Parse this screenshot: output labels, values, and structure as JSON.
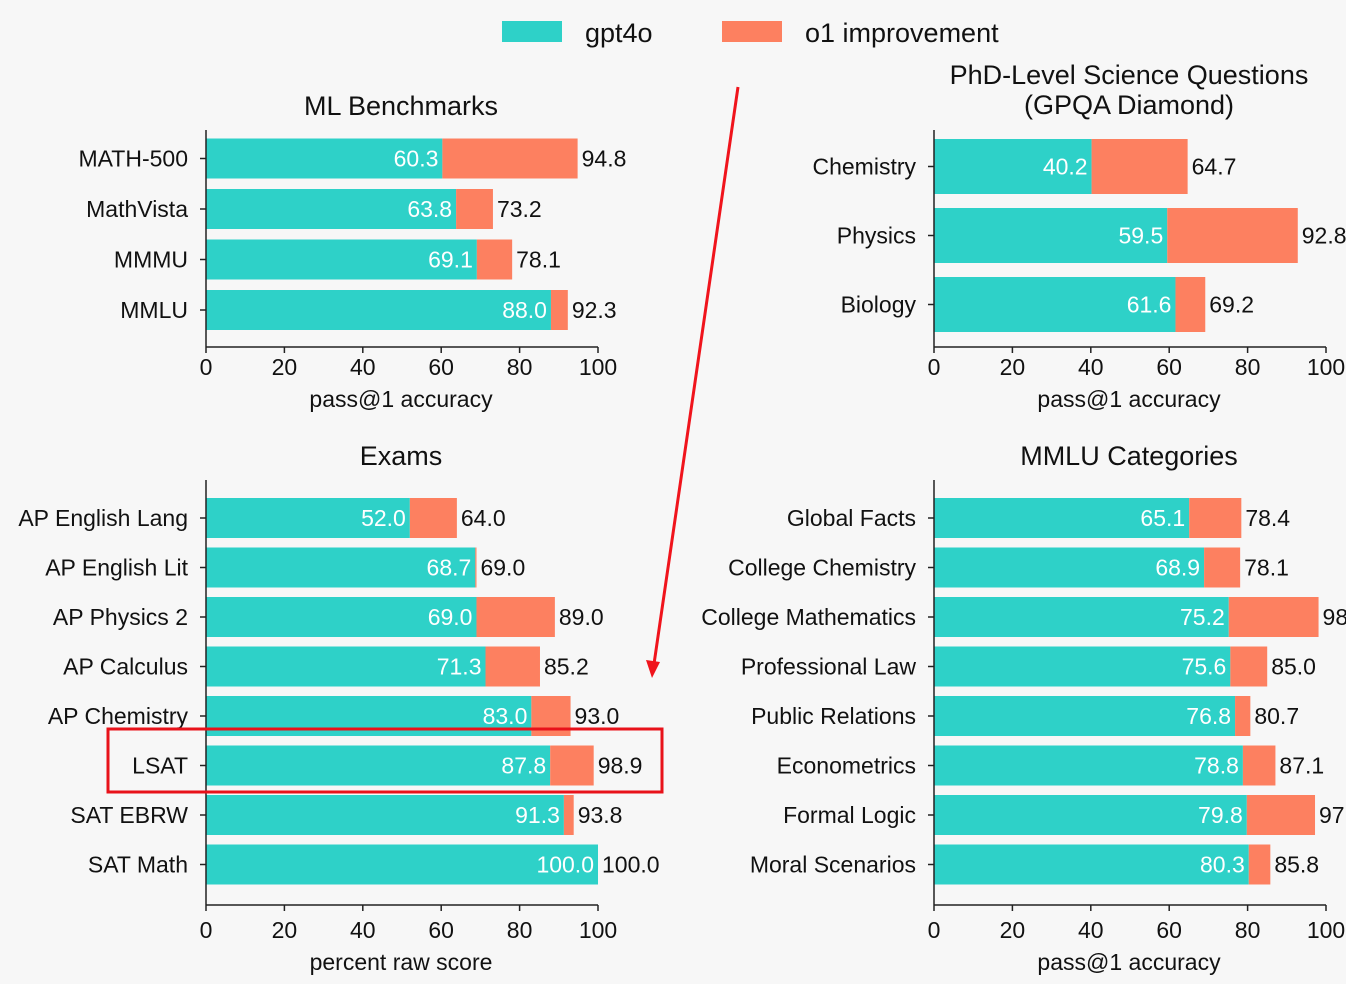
{
  "legend": {
    "items": [
      {
        "label": "gpt4o",
        "color": "#2ed1c8"
      },
      {
        "label": "o1 improvement",
        "color": "#fd8060"
      }
    ]
  },
  "chart_data": [
    {
      "id": "ml",
      "type": "bar",
      "orientation": "horizontal",
      "stacked": true,
      "title": [
        "ML Benchmarks"
      ],
      "xlabel": "pass@1 accuracy",
      "xlim": [
        0,
        100
      ],
      "xticks": [
        0,
        20,
        40,
        60,
        80,
        100
      ],
      "categories": [
        "MATH-500",
        "MathVista",
        "MMMU",
        "MMLU"
      ],
      "series": [
        {
          "name": "gpt4o",
          "values": [
            60.3,
            63.8,
            69.1,
            88.0
          ]
        },
        {
          "name": "o1 improvement",
          "totals": [
            94.8,
            73.2,
            78.1,
            92.3
          ]
        }
      ],
      "base_labels": [
        "60.3",
        "63.8",
        "69.1",
        "88.0"
      ],
      "total_labels": [
        "94.8",
        "73.2",
        "78.1",
        "92.3"
      ]
    },
    {
      "id": "gpqa",
      "type": "bar",
      "orientation": "horizontal",
      "stacked": true,
      "title": [
        "PhD-Level Science Questions",
        "(GPQA Diamond)"
      ],
      "xlabel": "pass@1 accuracy",
      "xlim": [
        0,
        100
      ],
      "xticks": [
        0,
        20,
        40,
        60,
        80,
        100
      ],
      "categories": [
        "Chemistry",
        "Physics",
        "Biology"
      ],
      "series": [
        {
          "name": "gpt4o",
          "values": [
            40.2,
            59.5,
            61.6
          ]
        },
        {
          "name": "o1 improvement",
          "totals": [
            64.7,
            92.8,
            69.2
          ]
        }
      ],
      "base_labels": [
        "40.2",
        "59.5",
        "61.6"
      ],
      "total_labels": [
        "64.7",
        "92.8",
        "69.2"
      ]
    },
    {
      "id": "exams",
      "type": "bar",
      "orientation": "horizontal",
      "stacked": true,
      "title": [
        "Exams"
      ],
      "xlabel": "percent raw score",
      "xlim": [
        0,
        100
      ],
      "xticks": [
        0,
        20,
        40,
        60,
        80,
        100
      ],
      "categories": [
        "AP English Lang",
        "AP English Lit",
        "AP Physics 2",
        "AP Calculus",
        "AP Chemistry",
        "LSAT",
        "SAT EBRW",
        "SAT Math"
      ],
      "series": [
        {
          "name": "gpt4o",
          "values": [
            52.0,
            68.7,
            69.0,
            71.3,
            83.0,
            87.8,
            91.3,
            100.0
          ]
        },
        {
          "name": "o1 improvement",
          "totals": [
            64.0,
            69.0,
            89.0,
            85.2,
            93.0,
            98.9,
            93.8,
            100.0
          ]
        }
      ],
      "base_labels": [
        "52.0",
        "68.7",
        "69.0",
        "71.3",
        "83.0",
        "87.8",
        "91.3",
        "100.0"
      ],
      "total_labels": [
        "64.0",
        "69.0",
        "89.0",
        "85.2",
        "93.0",
        "98.9",
        "93.8",
        "100.0"
      ],
      "highlight_category": "LSAT"
    },
    {
      "id": "mmlu",
      "type": "bar",
      "orientation": "horizontal",
      "stacked": true,
      "title": [
        "MMLU Categories"
      ],
      "xlabel": "pass@1 accuracy",
      "xlim": [
        0,
        100
      ],
      "xticks": [
        0,
        20,
        40,
        60,
        80,
        100
      ],
      "categories": [
        "Global Facts",
        "College Chemistry",
        "College Mathematics",
        "Professional Law",
        "Public Relations",
        "Econometrics",
        "Formal Logic",
        "Moral Scenarios"
      ],
      "series": [
        {
          "name": "gpt4o",
          "values": [
            65.1,
            68.9,
            75.2,
            75.6,
            76.8,
            78.8,
            79.8,
            80.3
          ]
        },
        {
          "name": "o1 improvement",
          "totals": [
            78.4,
            78.1,
            98.1,
            85.0,
            80.7,
            87.1,
            97.2,
            85.8
          ]
        }
      ],
      "base_labels": [
        "65.1",
        "68.9",
        "75.2",
        "75.6",
        "76.8",
        "78.8",
        "79.8",
        "80.3"
      ],
      "total_labels": [
        "78.4",
        "78.1",
        "98",
        "85.0",
        "80.7",
        "87.1",
        "97",
        "85.8"
      ]
    }
  ],
  "annotations": {
    "highlight_color": "#e8121a",
    "arrow_color": "#f0141c"
  }
}
